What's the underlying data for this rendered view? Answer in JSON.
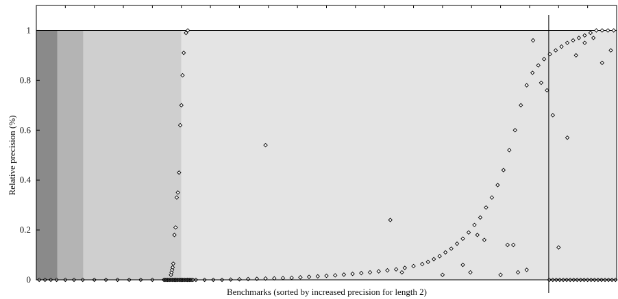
{
  "chart_data": {
    "type": "scatter",
    "title": "",
    "xlabel": "Benchmarks (sorted by increased precision for length 2)",
    "ylabel": "Relative precision (%)",
    "ylim": [
      0,
      1.1
    ],
    "xlim": [
      0,
      1000
    ],
    "y_ticks": [
      0,
      0.2,
      0.4,
      0.6,
      0.8,
      1
    ],
    "y_tick_labels": [
      "0",
      "0.2",
      "0.4",
      "0.6",
      "0.8",
      "1"
    ],
    "grid": false,
    "legend": "none",
    "colors": {
      "marker": "#000000",
      "band_darkest": "#8a8a8a",
      "band_dark": "#b4b4b4",
      "band_mid": "#cfcfcf",
      "band_light": "#e4e4e4",
      "background": "#ffffff"
    },
    "background_bands": [
      {
        "x_start": 0,
        "x_end": 36,
        "shade": "band_darkest"
      },
      {
        "x_start": 36,
        "x_end": 81,
        "shade": "band_dark"
      },
      {
        "x_start": 81,
        "x_end": 250,
        "shade": "band_mid"
      },
      {
        "x_start": 250,
        "x_end": 1000,
        "shade": "band_light"
      }
    ],
    "reference_lines": {
      "horizontal_y": [
        1,
        0
      ],
      "vertical_x": [
        883
      ]
    },
    "series": [
      {
        "marker": "diamond",
        "x": [
          5,
          15,
          25,
          35,
          50,
          65,
          80,
          100,
          120,
          140,
          160,
          180,
          200,
          220,
          240,
          250,
          260,
          275,
          290,
          305,
          320,
          335,
          350,
          365,
          380,
          395,
          410,
          425,
          440,
          455,
          470,
          485,
          500,
          515,
          530,
          545,
          560,
          575,
          590,
          605,
          620,
          635,
          650,
          665,
          675,
          685,
          695,
          705,
          715,
          725,
          735,
          745,
          755,
          765,
          775,
          785,
          795,
          805,
          815,
          825,
          835,
          845,
          855,
          865,
          875,
          885,
          895,
          905,
          915,
          925,
          935,
          945,
          955,
          965,
          975,
          985,
          995
        ],
        "y": [
          0,
          0,
          0,
          0,
          0,
          0,
          0,
          0,
          0,
          0,
          0,
          0,
          0,
          0,
          0,
          0,
          0,
          0,
          0,
          0,
          0,
          0.001,
          0.002,
          0.003,
          0.004,
          0.005,
          0.006,
          0.007,
          0.008,
          0.01,
          0.012,
          0.014,
          0.016,
          0.018,
          0.021,
          0.024,
          0.027,
          0.03,
          0.034,
          0.038,
          0.042,
          0.048,
          0.055,
          0.063,
          0.072,
          0.083,
          0.095,
          0.11,
          0.125,
          0.145,
          0.165,
          0.19,
          0.22,
          0.25,
          0.29,
          0.33,
          0.38,
          0.44,
          0.52,
          0.6,
          0.7,
          0.78,
          0.83,
          0.86,
          0.885,
          0.905,
          0.92,
          0.935,
          0.95,
          0.96,
          0.97,
          0.98,
          0.99,
          1.0,
          1.0,
          1.0,
          1.0
        ]
      },
      {
        "marker": "diamond",
        "x": [
          220,
          222,
          224,
          226,
          228,
          230,
          232,
          234,
          236,
          238,
          240,
          242,
          244,
          246,
          248,
          250,
          252,
          254,
          256,
          258,
          260,
          262,
          264,
          266,
          268,
          270
        ],
        "y": [
          0,
          0,
          0,
          0,
          0,
          0,
          0,
          0,
          0,
          0,
          0,
          0,
          0,
          0,
          0,
          0,
          0,
          0,
          0,
          0,
          0,
          0,
          0,
          0,
          0,
          0
        ]
      },
      {
        "marker": "diamond",
        "x": [
          232,
          233,
          234,
          235,
          236,
          238,
          240,
          242,
          244,
          246,
          248,
          250,
          252,
          254,
          258,
          261
        ],
        "y": [
          0.02,
          0.03,
          0.04,
          0.05,
          0.065,
          0.18,
          0.21,
          0.33,
          0.35,
          0.43,
          0.62,
          0.7,
          0.82,
          0.91,
          0.99,
          1.0
        ]
      },
      {
        "marker": "diamond",
        "x": [
          395,
          610,
          630,
          700,
          735,
          748,
          760,
          772,
          800,
          812,
          822,
          830,
          845,
          856,
          870,
          880,
          890,
          900,
          915,
          930,
          945,
          960,
          975,
          990
        ],
        "y": [
          0.54,
          0.24,
          0.03,
          0.02,
          0.06,
          0.03,
          0.18,
          0.16,
          0.02,
          0.14,
          0.14,
          0.03,
          0.04,
          0.96,
          0.79,
          0.76,
          0.66,
          0.13,
          0.57,
          0.9,
          0.95,
          0.97,
          0.87,
          0.92
        ]
      },
      {
        "marker": "diamond",
        "x": [
          884,
          890,
          896,
          902,
          908,
          914,
          920,
          926,
          932,
          938,
          944,
          950,
          956,
          962,
          968,
          974,
          980,
          986,
          992,
          998
        ],
        "y": [
          0.0,
          0.0,
          0.0,
          0.0,
          0.0,
          0.0,
          0.0,
          0.0,
          0.0,
          0.0,
          0.0,
          0.0,
          0.0,
          0.0,
          0.0,
          0.0,
          0.0,
          0.0,
          0.0,
          0.0
        ]
      }
    ]
  }
}
